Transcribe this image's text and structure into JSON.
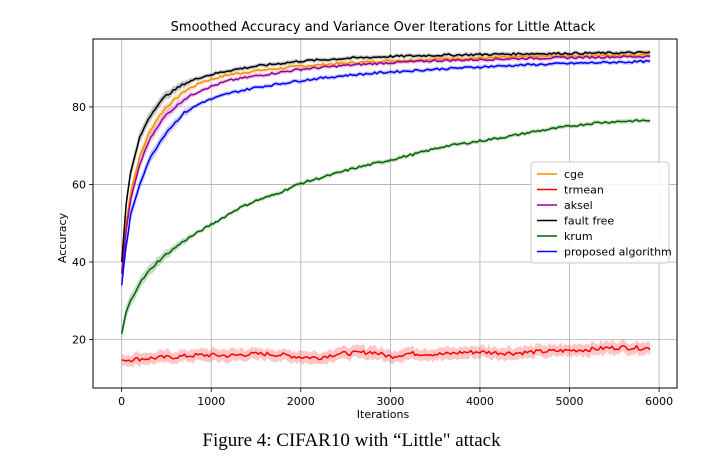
{
  "figure_caption": "Figure 4: CIFAR10 with “Little\" attack",
  "chart_data": {
    "type": "line",
    "title": "Smoothed Accuracy and Variance Over Iterations for Little Attack",
    "xlabel": "Iterations",
    "ylabel": "Accuracy",
    "xlim": [
      -320,
      6200
    ],
    "ylim": [
      7.5,
      97.5
    ],
    "xticks": [
      0,
      1000,
      2000,
      3000,
      4000,
      5000,
      6000
    ],
    "yticks": [
      20,
      40,
      60,
      80
    ],
    "grid": true,
    "legend_position": "center-right",
    "shaded_variance": true,
    "series": [
      {
        "name": "cge",
        "color": "#ff8c00",
        "x": [
          0,
          50,
          100,
          200,
          300,
          400,
          500,
          700,
          900,
          1200,
          1500,
          2000,
          2500,
          3000,
          3500,
          4000,
          4500,
          5000,
          5500,
          5900
        ],
        "y": [
          38,
          50,
          58,
          67,
          73,
          77,
          80,
          84,
          86.5,
          88.3,
          89.3,
          90.5,
          91.3,
          91.9,
          92.3,
          92.6,
          92.9,
          93.1,
          93.3,
          93.5
        ]
      },
      {
        "name": "trmean",
        "color": "#ff0000",
        "x": [
          0,
          200,
          400,
          600,
          800,
          1000,
          1200,
          1400,
          1600,
          1800,
          2000,
          2200,
          2400,
          2600,
          2800,
          3000,
          3200,
          3400,
          3600,
          3800,
          4000,
          4200,
          4400,
          4600,
          4800,
          5000,
          5200,
          5400,
          5600,
          5800,
          5900
        ],
        "y": [
          14.7,
          15,
          15.3,
          15.5,
          15.9,
          16,
          15.8,
          16.2,
          16.3,
          16,
          15.5,
          15.3,
          16.3,
          16.5,
          16.8,
          15.6,
          16.4,
          16.3,
          16.2,
          16.7,
          16.8,
          16.6,
          16.5,
          16.8,
          17,
          17.2,
          17.4,
          17.8,
          18,
          17.8,
          17.8
        ]
      },
      {
        "name": "aksel",
        "color": "#990099",
        "x": [
          0,
          50,
          100,
          200,
          300,
          400,
          500,
          700,
          900,
          1200,
          1500,
          2000,
          2500,
          3000,
          3500,
          4000,
          4500,
          5000,
          5500,
          5900
        ],
        "y": [
          37,
          48,
          56,
          65,
          71,
          75,
          78,
          82,
          84.5,
          86.8,
          88,
          89.7,
          90.7,
          91.4,
          91.9,
          92.2,
          92.5,
          92.7,
          92.9,
          93
        ]
      },
      {
        "name": "fault free",
        "color": "#000000",
        "x": [
          0,
          50,
          100,
          200,
          300,
          400,
          500,
          700,
          900,
          1200,
          1500,
          2000,
          2500,
          3000,
          3500,
          4000,
          4500,
          5000,
          5500,
          5900
        ],
        "y": [
          40,
          55,
          63,
          72,
          77,
          80.5,
          83,
          86,
          87.8,
          89.4,
          90.5,
          91.8,
          92.5,
          93,
          93.3,
          93.5,
          93.7,
          93.8,
          93.9,
          94
        ]
      },
      {
        "name": "krum",
        "color": "#006400",
        "x": [
          0,
          50,
          100,
          200,
          300,
          400,
          500,
          700,
          900,
          1100,
          1300,
          1500,
          1700,
          2000,
          2300,
          2600,
          3000,
          3300,
          3600,
          4000,
          4300,
          4600,
          5000,
          5300,
          5600,
          5900
        ],
        "y": [
          21.5,
          27,
          30,
          34.5,
          37.5,
          40,
          42,
          45.5,
          48.3,
          51,
          53.8,
          55.8,
          57.3,
          60.3,
          62.2,
          64.2,
          66.3,
          68,
          69.8,
          71.2,
          72.3,
          73.6,
          75,
          75.9,
          76.3,
          76.5
        ]
      },
      {
        "name": "proposed algorithm",
        "color": "#0000ff",
        "x": [
          0,
          50,
          100,
          200,
          300,
          400,
          500,
          700,
          900,
          1200,
          1500,
          2000,
          2500,
          3000,
          3500,
          4000,
          4500,
          5000,
          5500,
          5900
        ],
        "y": [
          34,
          44,
          52,
          60,
          66,
          70,
          73.5,
          78.5,
          81.2,
          83.5,
          85,
          86.8,
          88.1,
          89,
          89.7,
          90.3,
          90.8,
          91.2,
          91.5,
          91.7
        ]
      }
    ]
  }
}
